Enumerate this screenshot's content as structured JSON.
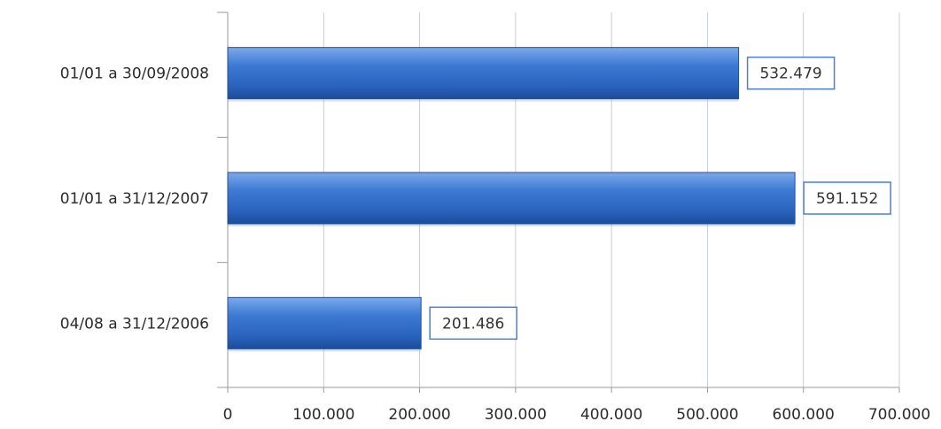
{
  "chart_data": {
    "type": "bar",
    "orientation": "horizontal",
    "categories": [
      "01/01 a 30/09/2008",
      "01/01 a 31/12/2007",
      "04/08 a 31/12/2006"
    ],
    "values": [
      532479,
      591152,
      201486
    ],
    "value_labels": [
      "532.479",
      "591.152",
      "201.486"
    ],
    "xlim": [
      0,
      700000
    ],
    "x_ticks": [
      0,
      100000,
      200000,
      300000,
      400000,
      500000,
      600000,
      700000
    ],
    "x_tick_labels": [
      "0",
      "100.000",
      "200.000",
      "300.000",
      "400.000",
      "500.000",
      "600.000",
      "700.000"
    ],
    "grid": "vertical",
    "legend": "none",
    "colors": {
      "bar": "#2f6dc6",
      "bar_light": "#6fa0e8",
      "bar_dark": "#1f4f9a",
      "grid": "#c9ccd6",
      "axis": "#9a9a9a",
      "label_border": "#4a7fd0"
    }
  }
}
